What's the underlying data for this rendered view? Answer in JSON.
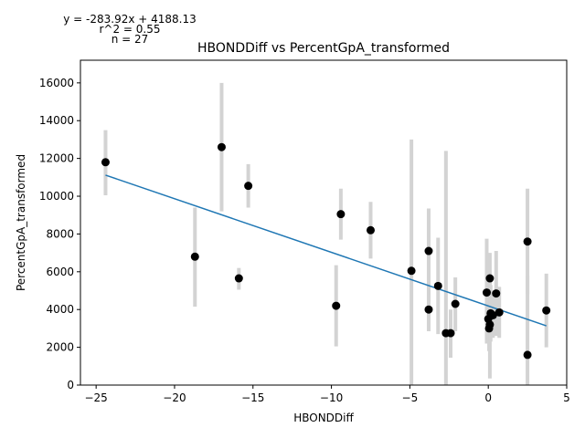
{
  "chart_data": {
    "type": "scatter",
    "title": "HBONDDiff vs PercentGpA_transformed",
    "xlabel": "HBONDDiff",
    "ylabel": "PercentGpA_transformed",
    "xlim": [
      -26,
      5
    ],
    "ylim": [
      0,
      17200
    ],
    "xticks": [
      -25,
      -20,
      -15,
      -10,
      -5,
      0,
      5
    ],
    "yticks": [
      0,
      2000,
      4000,
      6000,
      8000,
      10000,
      12000,
      14000,
      16000
    ],
    "xtick_labels": [
      "−25",
      "−20",
      "−15",
      "−10",
      "−5",
      "0",
      "5"
    ],
    "ytick_labels": [
      "0",
      "2000",
      "4000",
      "6000",
      "8000",
      "10000",
      "12000",
      "14000",
      "16000"
    ],
    "annotations": [
      "y = -283.92x + 4188.13",
      "r^2 = 0.55",
      "n = 27"
    ],
    "fit_line": {
      "slope": -283.92,
      "intercept": 4188.13,
      "x_range": [
        -24.4,
        3.7
      ]
    },
    "colors": {
      "points": "#000000",
      "fit_line": "#1f77b4",
      "error_bars": "#d3d3d3"
    },
    "grid": false,
    "points": [
      {
        "x": -24.4,
        "y": 11800,
        "err_lo": 10050,
        "err_hi": 13500
      },
      {
        "x": -18.7,
        "y": 6800,
        "err_lo": 4150,
        "err_hi": 9400
      },
      {
        "x": -17.0,
        "y": 12600,
        "err_lo": 9200,
        "err_hi": 16000
      },
      {
        "x": -15.9,
        "y": 5650,
        "err_lo": 5050,
        "err_hi": 6200
      },
      {
        "x": -15.3,
        "y": 10550,
        "err_lo": 9400,
        "err_hi": 11700
      },
      {
        "x": -9.7,
        "y": 4200,
        "err_lo": 2050,
        "err_hi": 6350
      },
      {
        "x": -9.4,
        "y": 9050,
        "err_lo": 7700,
        "err_hi": 10400
      },
      {
        "x": -7.5,
        "y": 8200,
        "err_lo": 6700,
        "err_hi": 9700
      },
      {
        "x": -4.9,
        "y": 6050,
        "err_lo": 0,
        "err_hi": 13000
      },
      {
        "x": -3.8,
        "y": 4000,
        "err_lo": 2850,
        "err_hi": 5300
      },
      {
        "x": -3.8,
        "y": 7100,
        "err_lo": 4800,
        "err_hi": 9350
      },
      {
        "x": -3.2,
        "y": 5250,
        "err_lo": 2700,
        "err_hi": 7800
      },
      {
        "x": -2.7,
        "y": 2750,
        "err_lo": 0,
        "err_hi": 12400
      },
      {
        "x": -2.4,
        "y": 2750,
        "err_lo": 1450,
        "err_hi": 4000
      },
      {
        "x": -2.1,
        "y": 4300,
        "err_lo": 2850,
        "err_hi": 5700
      },
      {
        "x": -0.1,
        "y": 4900,
        "err_lo": 2200,
        "err_hi": 7750
      },
      {
        "x": 0.0,
        "y": 3500,
        "err_lo": 2500,
        "err_hi": 4500
      },
      {
        "x": 0.05,
        "y": 3000,
        "err_lo": 1800,
        "err_hi": 4200
      },
      {
        "x": 0.1,
        "y": 5650,
        "err_lo": 4200,
        "err_hi": 7000
      },
      {
        "x": 0.1,
        "y": 3200,
        "err_lo": 350,
        "err_hi": 6000
      },
      {
        "x": 0.15,
        "y": 3800,
        "err_lo": 2300,
        "err_hi": 5300
      },
      {
        "x": 0.3,
        "y": 3700,
        "err_lo": 2500,
        "err_hi": 4900
      },
      {
        "x": 0.5,
        "y": 4850,
        "err_lo": 2600,
        "err_hi": 7100
      },
      {
        "x": 0.7,
        "y": 3850,
        "err_lo": 2500,
        "err_hi": 5200
      },
      {
        "x": 2.5,
        "y": 7600,
        "err_lo": 4800,
        "err_hi": 10400
      },
      {
        "x": 2.5,
        "y": 1600,
        "err_lo": 0,
        "err_hi": 5800
      },
      {
        "x": 3.7,
        "y": 3950,
        "err_lo": 2000,
        "err_hi": 5900
      }
    ]
  }
}
